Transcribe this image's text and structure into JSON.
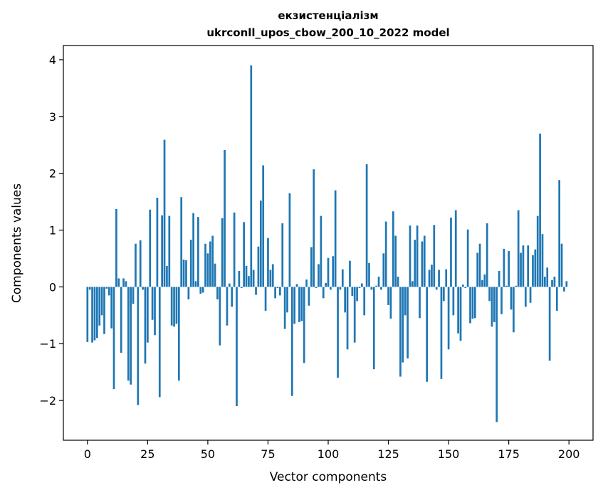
{
  "chart_data": {
    "type": "bar",
    "title": "екзистенціалізм",
    "subtitle": "ukrconll_upos_cbow_200_10_2022 model",
    "xlabel": "Vector components",
    "ylabel": "Components values",
    "xlim": [
      -10,
      210
    ],
    "ylim": [
      -2.7,
      4.25
    ],
    "xticks": [
      0,
      25,
      50,
      75,
      100,
      125,
      150,
      175,
      200
    ],
    "yticks": [
      -2,
      -1,
      0,
      1,
      2,
      3,
      4
    ],
    "ytick_labels": [
      "−2",
      "−1",
      "0",
      "1",
      "2",
      "3",
      "4"
    ],
    "bar_color": "#1f77b4",
    "grid": false,
    "legend": "none",
    "x": [
      0,
      1,
      2,
      3,
      4,
      5,
      6,
      7,
      8,
      9,
      10,
      11,
      12,
      13,
      14,
      15,
      16,
      17,
      18,
      19,
      20,
      21,
      22,
      23,
      24,
      25,
      26,
      27,
      28,
      29,
      30,
      31,
      32,
      33,
      34,
      35,
      36,
      37,
      38,
      39,
      40,
      41,
      42,
      43,
      44,
      45,
      46,
      47,
      48,
      49,
      50,
      51,
      52,
      53,
      54,
      55,
      56,
      57,
      58,
      59,
      60,
      61,
      62,
      63,
      64,
      65,
      66,
      67,
      68,
      69,
      70,
      71,
      72,
      73,
      74,
      75,
      76,
      77,
      78,
      79,
      80,
      81,
      82,
      83,
      84,
      85,
      86,
      87,
      88,
      89,
      90,
      91,
      92,
      93,
      94,
      95,
      96,
      97,
      98,
      99,
      100,
      101,
      102,
      103,
      104,
      105,
      106,
      107,
      108,
      109,
      110,
      111,
      112,
      113,
      114,
      115,
      116,
      117,
      118,
      119,
      120,
      121,
      122,
      123,
      124,
      125,
      126,
      127,
      128,
      129,
      130,
      131,
      132,
      133,
      134,
      135,
      136,
      137,
      138,
      139,
      140,
      141,
      142,
      143,
      144,
      145,
      146,
      147,
      148,
      149,
      150,
      151,
      152,
      153,
      154,
      155,
      156,
      157,
      158,
      159,
      160,
      161,
      162,
      163,
      164,
      165,
      166,
      167,
      168,
      169,
      170,
      171,
      172,
      173,
      174,
      175,
      176,
      177,
      178,
      179,
      180,
      181,
      182,
      183,
      184,
      185,
      186,
      187,
      188,
      189,
      190,
      191,
      192,
      193,
      194,
      195,
      196,
      197,
      198,
      199
    ],
    "values": [
      -0.97,
      -0.05,
      -0.98,
      -0.94,
      -0.9,
      -0.68,
      -0.5,
      -0.83,
      -0.03,
      -0.15,
      -0.73,
      -1.8,
      1.37,
      0.15,
      -1.16,
      0.15,
      0.1,
      -1.65,
      -1.72,
      -0.3,
      0.76,
      -2.08,
      0.82,
      -0.05,
      -1.35,
      -0.98,
      1.36,
      -0.58,
      -0.85,
      1.57,
      -1.94,
      1.26,
      2.59,
      0.37,
      1.25,
      -0.68,
      -0.7,
      -0.65,
      -1.65,
      1.58,
      0.48,
      0.47,
      -0.22,
      0.83,
      1.3,
      0.1,
      1.23,
      -0.12,
      -0.1,
      0.76,
      0.59,
      0.8,
      0.9,
      0.41,
      -0.22,
      -1.03,
      1.21,
      2.41,
      -0.68,
      0.06,
      -0.35,
      1.31,
      -2.1,
      0.28,
      -0.02,
      1.14,
      0.37,
      0.19,
      3.9,
      0.3,
      -0.14,
      0.71,
      1.52,
      2.14,
      -0.42,
      0.86,
      0.3,
      0.4,
      -0.2,
      -0.02,
      -0.15,
      1.12,
      -0.74,
      -0.45,
      1.65,
      -1.92,
      -0.65,
      0.05,
      -0.62,
      -0.6,
      -1.34,
      0.13,
      -0.33,
      0.7,
      2.07,
      -0.02,
      0.4,
      1.25,
      -0.2,
      0.07,
      0.51,
      -0.05,
      0.54,
      1.7,
      -1.6,
      -0.05,
      0.31,
      -0.45,
      -1.1,
      0.46,
      -0.16,
      -0.98,
      -0.25,
      -0.02,
      0.06,
      -0.5,
      2.16,
      0.42,
      -0.05,
      -1.45,
      0.02,
      0.18,
      -0.05,
      0.59,
      1.15,
      -0.32,
      -0.56,
      1.33,
      0.9,
      0.18,
      -1.58,
      -1.33,
      -0.5,
      -1.26,
      1.08,
      0.1,
      0.83,
      1.08,
      -0.55,
      0.8,
      0.9,
      -1.67,
      0.3,
      0.39,
      1.09,
      -0.05,
      0.3,
      -1.62,
      -0.25,
      0.31,
      -1.1,
      1.22,
      -0.5,
      1.35,
      -0.82,
      -0.95,
      0.04,
      -0.02,
      1.01,
      -0.64,
      -0.56,
      -0.55,
      0.6,
      0.76,
      0.12,
      0.22,
      1.12,
      -0.25,
      -0.7,
      -0.62,
      -2.38,
      0.28,
      -0.48,
      0.67,
      0.02,
      0.63,
      -0.4,
      -0.8,
      0.02,
      1.35,
      0.6,
      0.73,
      -0.35,
      0.73,
      -0.28,
      0.56,
      0.66,
      1.25,
      2.7,
      0.93,
      0.18,
      0.34,
      -1.3,
      0.12,
      0.18,
      -0.42,
      1.88,
      0.76,
      -0.08,
      0.1
    ]
  }
}
